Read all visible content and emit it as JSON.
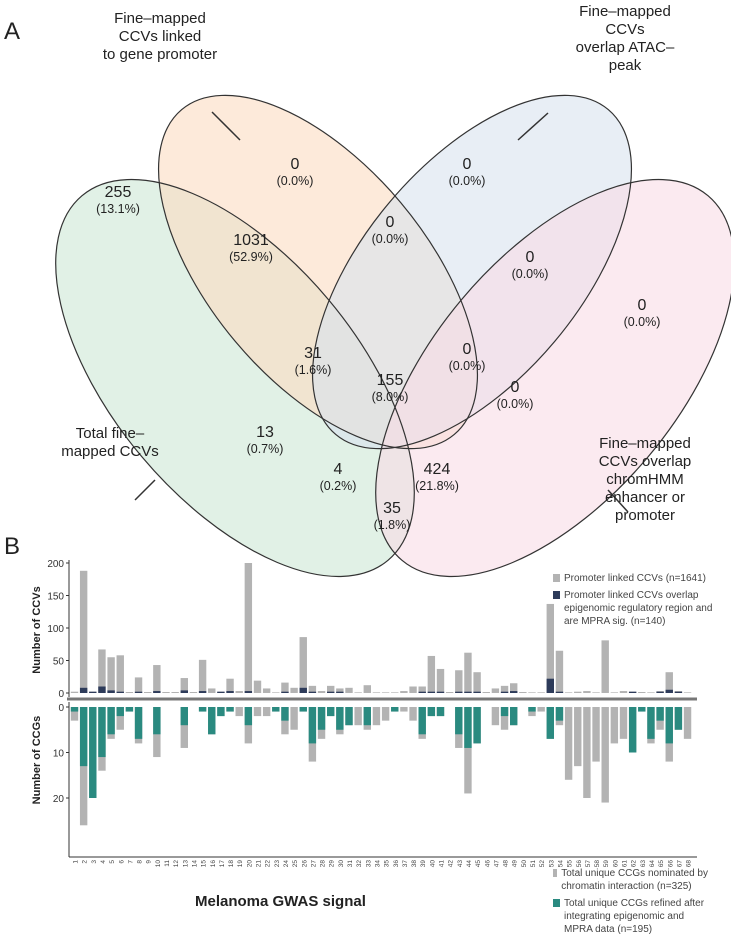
{
  "panel_a": {
    "letter": "A",
    "type": "venn",
    "sets": [
      {
        "id": "total",
        "label": "Total fine–\nmapped CCVs",
        "color": "#cde8d6"
      },
      {
        "id": "promoter",
        "label": "Fine–mapped\nCCVs linked\nto gene promoter",
        "color": "#fbdcc2"
      },
      {
        "id": "atac",
        "label": "Fine–mapped\nCCVs\noverlap ATAC–\npeak",
        "color": "#d8e2ee"
      },
      {
        "id": "chromhmm",
        "label": "Fine–mapped\nCCVs overlap\nchromHMM\nenhancer or\npromoter",
        "color": "#f8dce6"
      }
    ],
    "regions": [
      {
        "sets": "total",
        "count": "255",
        "pct": "(13.1%)"
      },
      {
        "sets": "promoter",
        "count": "0",
        "pct": "(0.0%)"
      },
      {
        "sets": "atac",
        "count": "0",
        "pct": "(0.0%)"
      },
      {
        "sets": "chromhmm",
        "count": "0",
        "pct": "(0.0%)"
      },
      {
        "sets": "total+promoter",
        "count": "1031",
        "pct": "(52.9%)"
      },
      {
        "sets": "promoter+atac",
        "count": "0",
        "pct": "(0.0%)"
      },
      {
        "sets": "atac+chromhmm",
        "count": "0",
        "pct": "(0.0%)"
      },
      {
        "sets": "total+promoter+atac",
        "count": "31",
        "pct": "(1.6%)"
      },
      {
        "sets": "promoter+atac+chromhmm",
        "count": "0",
        "pct": "(0.0%)"
      },
      {
        "sets": "total+atac",
        "count": "13",
        "pct": "(0.7%)"
      },
      {
        "sets": "all",
        "count": "155",
        "pct": "(8.0%)"
      },
      {
        "sets": "promoter+chromhmm",
        "count": "0",
        "pct": "(0.0%)"
      },
      {
        "sets": "total+atac+chromhmm",
        "count": "4",
        "pct": "(0.2%)"
      },
      {
        "sets": "total+promoter+chromhmm",
        "count": "424",
        "pct": "(21.8%)"
      },
      {
        "sets": "total+chromhmm",
        "count": "35",
        "pct": "(1.8%)"
      }
    ]
  },
  "panel_b": {
    "letter": "B"
  },
  "chart_data": {
    "type": "bar",
    "xlabel": "Melanoma GWAS signal",
    "categories": [
      "1",
      "2",
      "3",
      "4",
      "5",
      "6",
      "7",
      "8",
      "9",
      "10",
      "11",
      "12",
      "13",
      "14",
      "15",
      "16",
      "17",
      "18",
      "19",
      "20",
      "21",
      "22",
      "23",
      "24",
      "25",
      "26",
      "27",
      "28",
      "29",
      "30",
      "31",
      "32",
      "33",
      "34",
      "35",
      "36",
      "37",
      "38",
      "39",
      "40",
      "41",
      "42",
      "43",
      "44",
      "45",
      "46",
      "47",
      "48",
      "49",
      "50",
      "51",
      "52",
      "53",
      "54",
      "55",
      "56",
      "57",
      "58",
      "59",
      "60",
      "61",
      "62",
      "63",
      "64",
      "65",
      "66",
      "67",
      "68"
    ],
    "top": {
      "ylabel": "Number of CCVs",
      "ylim": [
        0,
        200
      ],
      "yticks": [
        "0",
        "50",
        "100",
        "150",
        "200"
      ],
      "series": [
        {
          "name": "Promoter linked CCVs (n=1641)",
          "color": "#b3b3b3",
          "values": [
            2,
            188,
            2,
            67,
            55,
            58,
            0,
            24,
            0,
            43,
            0,
            0,
            23,
            0,
            51,
            7,
            2,
            22,
            3,
            200,
            19,
            7,
            1,
            16,
            8,
            86,
            11,
            3,
            11,
            7,
            8,
            1,
            12,
            1,
            1,
            1,
            3,
            10,
            10,
            57,
            37,
            0,
            35,
            62,
            32,
            0,
            7,
            11,
            15,
            0,
            1,
            1,
            137,
            65,
            1,
            2,
            3,
            1,
            81,
            1,
            3,
            2,
            0,
            1,
            3,
            32,
            3,
            1
          ]
        },
        {
          "name": "Promoter linked CCVs overlap epigenomic regulatory region and are MPRA sig. (n=140)",
          "color": "#2d3b5a",
          "values": [
            0,
            8,
            2,
            10,
            4,
            2,
            0,
            2,
            0,
            3,
            0,
            0,
            4,
            0,
            3,
            0,
            2,
            3,
            0,
            3,
            0,
            0,
            0,
            2,
            0,
            8,
            2,
            0,
            2,
            2,
            0,
            0,
            0,
            0,
            0,
            0,
            0,
            0,
            2,
            2,
            2,
            0,
            2,
            2,
            2,
            0,
            0,
            2,
            3,
            0,
            0,
            0,
            22,
            2,
            0,
            0,
            0,
            0,
            0,
            0,
            0,
            2,
            0,
            0,
            2,
            5,
            2,
            0
          ]
        }
      ]
    },
    "bottom": {
      "ylabel": "Number of CCGs",
      "ylim": [
        0,
        27
      ],
      "yticks": [
        "0",
        "10",
        "20"
      ],
      "inverted": true,
      "series": [
        {
          "name": "Total unique CCGs nominated by chromatin interaction (n=325)",
          "color": "#b3b3b3",
          "values": [
            3,
            26,
            20,
            14,
            7,
            5,
            1,
            8,
            0,
            11,
            0,
            0,
            9,
            0,
            1,
            6,
            2,
            1,
            2,
            8,
            2,
            2,
            1,
            6,
            5,
            1,
            12,
            7,
            2,
            6,
            4,
            4,
            5,
            4,
            3,
            1,
            1,
            3,
            7,
            2,
            2,
            0,
            9,
            19,
            8,
            0,
            4,
            5,
            4,
            0,
            2,
            1,
            7,
            4,
            16,
            13,
            20,
            12,
            21,
            8,
            7,
            10,
            1,
            8,
            5,
            12,
            5,
            7
          ]
        },
        {
          "name": "Total unique CCGs refined after integrating epigenomic and MPRA data (n=195)",
          "color": "#2a8a80",
          "values": [
            1,
            13,
            20,
            11,
            6,
            2,
            1,
            7,
            0,
            6,
            0,
            0,
            4,
            0,
            1,
            6,
            2,
            1,
            0,
            4,
            0,
            0,
            1,
            3,
            0,
            1,
            8,
            5,
            2,
            5,
            4,
            0,
            4,
            0,
            0,
            1,
            0,
            0,
            6,
            2,
            2,
            0,
            6,
            9,
            8,
            0,
            0,
            2,
            4,
            0,
            1,
            0,
            7,
            3,
            0,
            0,
            0,
            0,
            0,
            0,
            0,
            10,
            1,
            7,
            3,
            8,
            5,
            0
          ]
        }
      ]
    }
  }
}
